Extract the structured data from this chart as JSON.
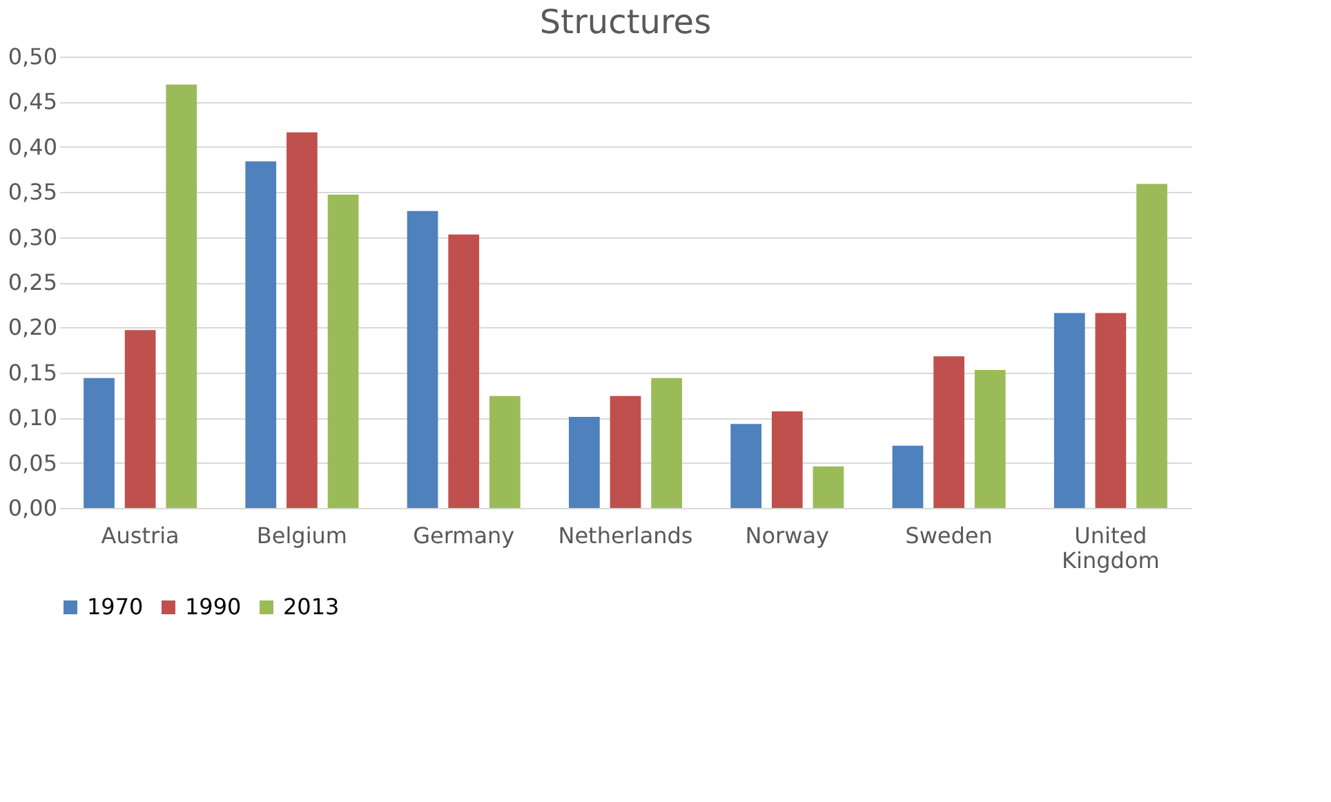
{
  "chart_data": {
    "type": "bar",
    "title": "Structures",
    "categories": [
      "Austria",
      "Belgium",
      "Germany",
      "Netherlands",
      "Norway",
      "Sweden",
      "United Kingdom"
    ],
    "series": [
      {
        "name": "1970",
        "color": "#4f81bd",
        "values": [
          0.144,
          0.384,
          0.329,
          0.101,
          0.093,
          0.069,
          0.216
        ]
      },
      {
        "name": "1990",
        "color": "#c0504d",
        "values": [
          0.197,
          0.416,
          0.303,
          0.124,
          0.107,
          0.168,
          0.216
        ]
      },
      {
        "name": "2013",
        "color": "#9bbb59",
        "values": [
          0.469,
          0.347,
          0.124,
          0.144,
          0.046,
          0.153,
          0.359
        ]
      }
    ],
    "ylim": [
      0,
      0.5
    ],
    "yticks": [
      {
        "value": 0,
        "label": "0,00"
      },
      {
        "value": 0.05,
        "label": "0,05"
      },
      {
        "value": 0.1,
        "label": "0,10"
      },
      {
        "value": 0.15,
        "label": "0,15"
      },
      {
        "value": 0.2,
        "label": "0,20"
      },
      {
        "value": 0.25,
        "label": "0,25"
      },
      {
        "value": 0.3,
        "label": "0,30"
      },
      {
        "value": 0.35,
        "label": "0,35"
      },
      {
        "value": 0.4,
        "label": "0,40"
      },
      {
        "value": 0.45,
        "label": "0,45"
      },
      {
        "value": 0.5,
        "label": "0,50"
      }
    ],
    "grid": "y",
    "legend": "bottom"
  }
}
